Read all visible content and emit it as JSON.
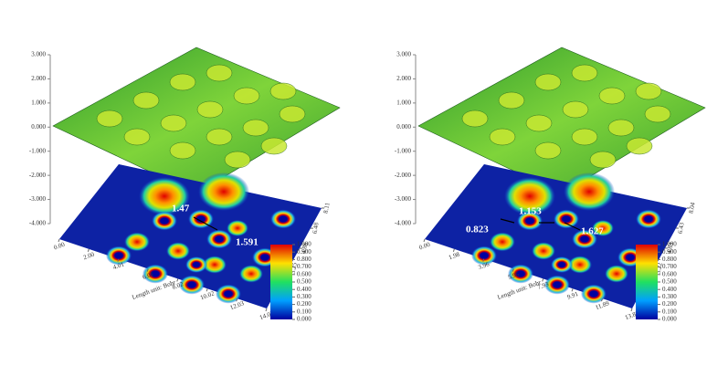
{
  "chart_data": [
    {
      "type": "surface",
      "x_label": "Length unit: Bohr",
      "zlim": [
        -4,
        3
      ],
      "zticks": [
        {
          "value": 3,
          "label": "3.000"
        },
        {
          "value": 2,
          "label": "2.000"
        },
        {
          "value": 1,
          "label": "1.000"
        },
        {
          "value": 0,
          "label": "0.000"
        },
        {
          "value": -1,
          "label": "-1.000"
        },
        {
          "value": -2,
          "label": "-2.000"
        },
        {
          "value": -3,
          "label": "-3.000"
        },
        {
          "value": -4,
          "label": "-4.000"
        }
      ],
      "xlim": [
        0,
        14.03
      ],
      "xticks": [
        {
          "value": 0,
          "label": "0.00"
        },
        {
          "value": 2,
          "label": "2.00"
        },
        4.01,
        6.01,
        8.02,
        10.02,
        12.03,
        14.03
      ],
      "ylim": [
        0,
        8.11
      ],
      "yticks": [
        1.61,
        3.25,
        4.86,
        6.48,
        8.11
      ],
      "clim": [
        0,
        1
      ],
      "cticks": [
        {
          "value": 0,
          "label": "0.000"
        },
        {
          "value": 0.1,
          "label": "0.100"
        },
        {
          "value": 0.2,
          "label": "0.200"
        },
        {
          "value": 0.3,
          "label": "0.300"
        },
        {
          "value": 0.4,
          "label": "0.400"
        },
        {
          "value": 0.5,
          "label": "0.500"
        },
        {
          "value": 0.6,
          "label": "0.600"
        },
        {
          "value": 0.7,
          "label": "0.700"
        },
        {
          "value": 0.8,
          "label": "0.800"
        },
        {
          "value": 0.9,
          "label": "0.900"
        },
        {
          "value": 1,
          "label": "1.000"
        }
      ],
      "annotations": [
        "1.47",
        "1.591"
      ]
    },
    {
      "type": "surface",
      "x_label": "Length unit: Bohr",
      "zlim": [
        -4,
        3
      ],
      "zticks": [
        {
          "value": 3,
          "label": "3.000"
        },
        {
          "value": 2,
          "label": "2.000"
        },
        {
          "value": 1,
          "label": "1.000"
        },
        {
          "value": 0,
          "label": "0.000"
        },
        {
          "value": -1,
          "label": "-1.000"
        },
        {
          "value": -2,
          "label": "-2.000"
        },
        {
          "value": -3,
          "label": "-3.000"
        },
        {
          "value": -4,
          "label": "-4.000"
        }
      ],
      "xlim": [
        0,
        13.88
      ],
      "xticks": [
        {
          "value": 0,
          "label": "0.00"
        },
        1.98,
        3.96,
        5.95,
        7.93,
        9.91,
        11.89,
        13.88
      ],
      "ylim": [
        0,
        8.04
      ],
      "yticks": [
        1.61,
        3.22,
        4.83,
        6.43,
        8.04
      ],
      "clim": [
        0,
        1
      ],
      "cticks": [
        {
          "value": 0,
          "label": "0.000"
        },
        {
          "value": 0.1,
          "label": "0.100"
        },
        {
          "value": 0.2,
          "label": "0.200"
        },
        {
          "value": 0.3,
          "label": "0.300"
        },
        {
          "value": 0.4,
          "label": "0.400"
        },
        {
          "value": 0.5,
          "label": "0.500"
        },
        {
          "value": 0.6,
          "label": "0.600"
        },
        {
          "value": 0.7,
          "label": "0.700"
        },
        {
          "value": 0.8,
          "label": "0.800"
        },
        {
          "value": 0.9,
          "label": "0.900"
        },
        {
          "value": 1,
          "label": "1.000"
        }
      ],
      "annotations": [
        "0.823",
        "1.153",
        "1.627"
      ]
    }
  ]
}
